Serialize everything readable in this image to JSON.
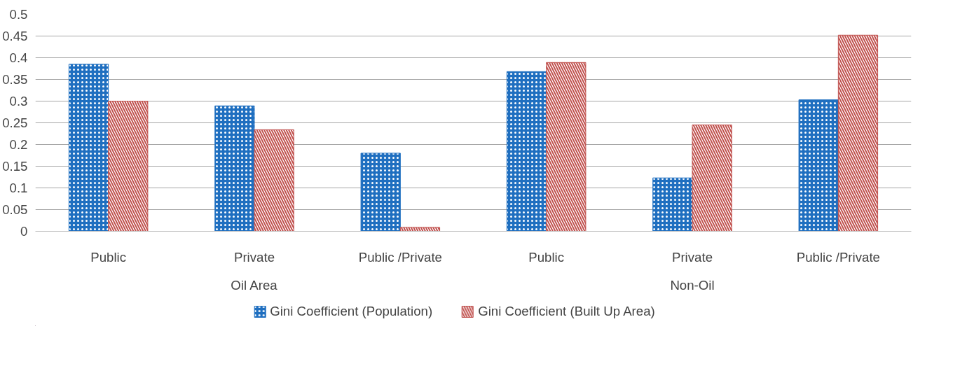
{
  "chart_data": {
    "type": "bar",
    "categories": [
      "Public",
      "Private",
      "Public /Private",
      "Public",
      "Private",
      "Public /Private"
    ],
    "annotations": [
      "Oil Area",
      "Non-Oil"
    ],
    "series": [
      {
        "name": "Gini Coefficient (Population)",
        "color": "#1f6fc0",
        "values": [
          0.385,
          0.289,
          0.18,
          0.368,
          0.123,
          0.303
        ]
      },
      {
        "name": "Gini Coefficient (Built Up Area)",
        "color": "#c0504d",
        "values": [
          0.3,
          0.234,
          0.009,
          0.389,
          0.245,
          0.452
        ]
      }
    ],
    "ylim": [
      0,
      0.5
    ],
    "yticks": [
      0,
      0.05,
      0.1,
      0.15,
      0.2,
      0.25,
      0.3,
      0.35,
      0.4,
      0.45,
      0.5
    ],
    "grid": "y",
    "legend": "bottom"
  }
}
